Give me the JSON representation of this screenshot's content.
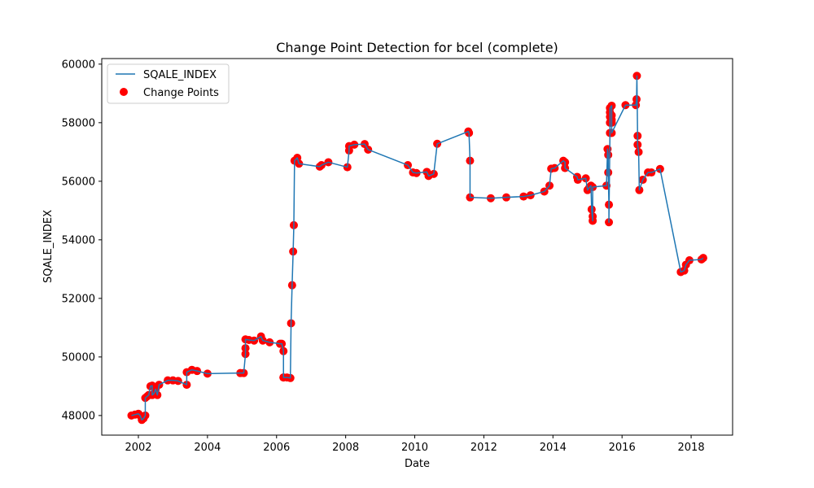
{
  "chart_data": {
    "type": "line",
    "title": "Change Point Detection for bcel (complete)",
    "xlabel": "Date",
    "ylabel": "SQALE_INDEX",
    "xlim": [
      2000.94,
      2019.2
    ],
    "ylim": [
      47330,
      60190
    ],
    "xticks": [
      2002,
      2004,
      2006,
      2008,
      2010,
      2012,
      2014,
      2016,
      2018
    ],
    "yticks": [
      48000,
      50000,
      52000,
      54000,
      56000,
      58000,
      60000
    ],
    "legend_position": "upper left",
    "legend": [
      "SQALE_INDEX",
      "Change Points"
    ],
    "colors": {
      "line": "#1f77b4",
      "points": "#ff0000"
    },
    "series": [
      {
        "name": "SQALE_INDEX",
        "x": [
          2001.8,
          2001.9,
          2002.0,
          2002.05,
          2002.1,
          2002.15,
          2002.2,
          2002.2,
          2002.25,
          2002.3,
          2002.35,
          2002.4,
          2002.4,
          2002.45,
          2002.5,
          2002.55,
          2002.6,
          2002.85,
          2003.0,
          2003.15,
          2003.4,
          2003.4,
          2003.55,
          2003.7,
          2004.0,
          2004.95,
          2005.05,
          2005.1,
          2005.1,
          2005.1,
          2005.2,
          2005.35,
          2005.55,
          2005.6,
          2005.8,
          2006.1,
          2006.15,
          2006.2,
          2006.2,
          2006.2,
          2006.3,
          2006.4,
          2006.42,
          2006.45,
          2006.48,
          2006.5,
          2006.52,
          2006.6,
          2006.65,
          2007.25,
          2007.3,
          2007.5,
          2008.05,
          2008.1,
          2008.1,
          2008.25,
          2008.55,
          2008.65,
          2009.8,
          2009.95,
          2010.05,
          2010.35,
          2010.4,
          2010.55,
          2010.65,
          2011.55,
          2011.57,
          2011.6,
          2011.6,
          2012.2,
          2012.65,
          2013.15,
          2013.35,
          2013.75,
          2013.9,
          2013.95,
          2014.05,
          2014.3,
          2014.35,
          2014.35,
          2014.7,
          2014.72,
          2014.95,
          2015.0,
          2015.05,
          2015.1,
          2015.12,
          2015.15,
          2015.15,
          2015.15,
          2015.55,
          2015.58,
          2015.6,
          2015.6,
          2015.62,
          2015.62,
          2015.65,
          2015.65,
          2015.65,
          2015.65,
          2015.65,
          2015.7,
          2015.7,
          2015.7,
          2015.7,
          2015.7,
          2016.1,
          2016.4,
          2016.42,
          2016.43,
          2016.45,
          2016.45,
          2016.48,
          2016.5,
          2016.6,
          2016.75,
          2016.85,
          2017.1,
          2017.7,
          2017.8,
          2017.85,
          2017.95,
          2018.3,
          2018.35
        ],
        "y": [
          48000,
          48030,
          48060,
          48000,
          47850,
          47900,
          48000,
          48600,
          48650,
          48700,
          49000,
          49020,
          48700,
          48750,
          48900,
          48700,
          49050,
          49200,
          49200,
          49180,
          49050,
          49480,
          49560,
          49520,
          49430,
          49450,
          49450,
          50100,
          50300,
          50600,
          50580,
          50560,
          50700,
          50560,
          50500,
          50450,
          50450,
          50200,
          49300,
          49300,
          49300,
          49280,
          51150,
          52450,
          53600,
          54500,
          56700,
          56800,
          56600,
          56500,
          56550,
          56650,
          56480,
          57050,
          57200,
          57250,
          57270,
          57080,
          56550,
          56300,
          56280,
          56320,
          56180,
          56250,
          57280,
          57700,
          57650,
          56700,
          55450,
          55420,
          55450,
          55480,
          55520,
          55650,
          55850,
          56430,
          56450,
          56700,
          56650,
          56450,
          56150,
          56050,
          56100,
          55700,
          55780,
          55850,
          55040,
          54650,
          54800,
          55800,
          55850,
          57100,
          56900,
          56300,
          55200,
          54600,
          57650,
          58000,
          58200,
          58350,
          58500,
          58580,
          58250,
          58100,
          58000,
          57650,
          58600,
          58600,
          58800,
          59600,
          57550,
          57250,
          57000,
          55700,
          56050,
          56300,
          56300,
          56420,
          52900,
          52950,
          53150,
          53300,
          53330,
          53380
        ]
      },
      {
        "name": "Change Points",
        "x": [
          2001.8,
          2001.9,
          2002.0,
          2002.05,
          2002.1,
          2002.15,
          2002.2,
          2002.2,
          2002.25,
          2002.3,
          2002.35,
          2002.4,
          2002.4,
          2002.45,
          2002.5,
          2002.55,
          2002.6,
          2002.85,
          2003.0,
          2003.15,
          2003.4,
          2003.4,
          2003.55,
          2003.7,
          2004.0,
          2004.95,
          2005.05,
          2005.1,
          2005.1,
          2005.1,
          2005.2,
          2005.35,
          2005.55,
          2005.6,
          2005.8,
          2006.1,
          2006.15,
          2006.2,
          2006.2,
          2006.2,
          2006.3,
          2006.4,
          2006.42,
          2006.45,
          2006.48,
          2006.5,
          2006.52,
          2006.6,
          2006.65,
          2007.25,
          2007.3,
          2007.5,
          2008.05,
          2008.1,
          2008.1,
          2008.25,
          2008.55,
          2008.65,
          2009.8,
          2009.95,
          2010.05,
          2010.35,
          2010.4,
          2010.55,
          2010.65,
          2011.55,
          2011.57,
          2011.6,
          2011.6,
          2012.2,
          2012.65,
          2013.15,
          2013.35,
          2013.75,
          2013.9,
          2013.95,
          2014.05,
          2014.3,
          2014.35,
          2014.35,
          2014.7,
          2014.72,
          2014.95,
          2015.0,
          2015.05,
          2015.1,
          2015.12,
          2015.15,
          2015.15,
          2015.15,
          2015.55,
          2015.58,
          2015.6,
          2015.6,
          2015.62,
          2015.62,
          2015.65,
          2015.65,
          2015.65,
          2015.65,
          2015.65,
          2015.7,
          2015.7,
          2015.7,
          2015.7,
          2015.7,
          2016.1,
          2016.4,
          2016.42,
          2016.43,
          2016.45,
          2016.45,
          2016.48,
          2016.5,
          2016.6,
          2016.75,
          2016.85,
          2017.1,
          2017.7,
          2017.8,
          2017.85,
          2017.95,
          2018.3,
          2018.35
        ],
        "y": [
          48000,
          48030,
          48060,
          48000,
          47850,
          47900,
          48000,
          48600,
          48650,
          48700,
          49000,
          49020,
          48700,
          48750,
          48900,
          48700,
          49050,
          49200,
          49200,
          49180,
          49050,
          49480,
          49560,
          49520,
          49430,
          49450,
          49450,
          50100,
          50300,
          50600,
          50580,
          50560,
          50700,
          50560,
          50500,
          50450,
          50450,
          50200,
          49300,
          49300,
          49300,
          49280,
          51150,
          52450,
          53600,
          54500,
          56700,
          56800,
          56600,
          56500,
          56550,
          56650,
          56480,
          57050,
          57200,
          57250,
          57270,
          57080,
          56550,
          56300,
          56280,
          56320,
          56180,
          56250,
          57280,
          57700,
          57650,
          56700,
          55450,
          55420,
          55450,
          55480,
          55520,
          55650,
          55850,
          56430,
          56450,
          56700,
          56650,
          56450,
          56150,
          56050,
          56100,
          55700,
          55780,
          55850,
          55040,
          54650,
          54800,
          55800,
          55850,
          57100,
          56900,
          56300,
          55200,
          54600,
          57650,
          58000,
          58200,
          58350,
          58500,
          58580,
          58250,
          58100,
          58000,
          57650,
          58600,
          58600,
          58800,
          59600,
          57550,
          57250,
          57000,
          55700,
          56050,
          56300,
          56300,
          56420,
          52900,
          52950,
          53150,
          53300,
          53330,
          53380
        ]
      }
    ]
  }
}
